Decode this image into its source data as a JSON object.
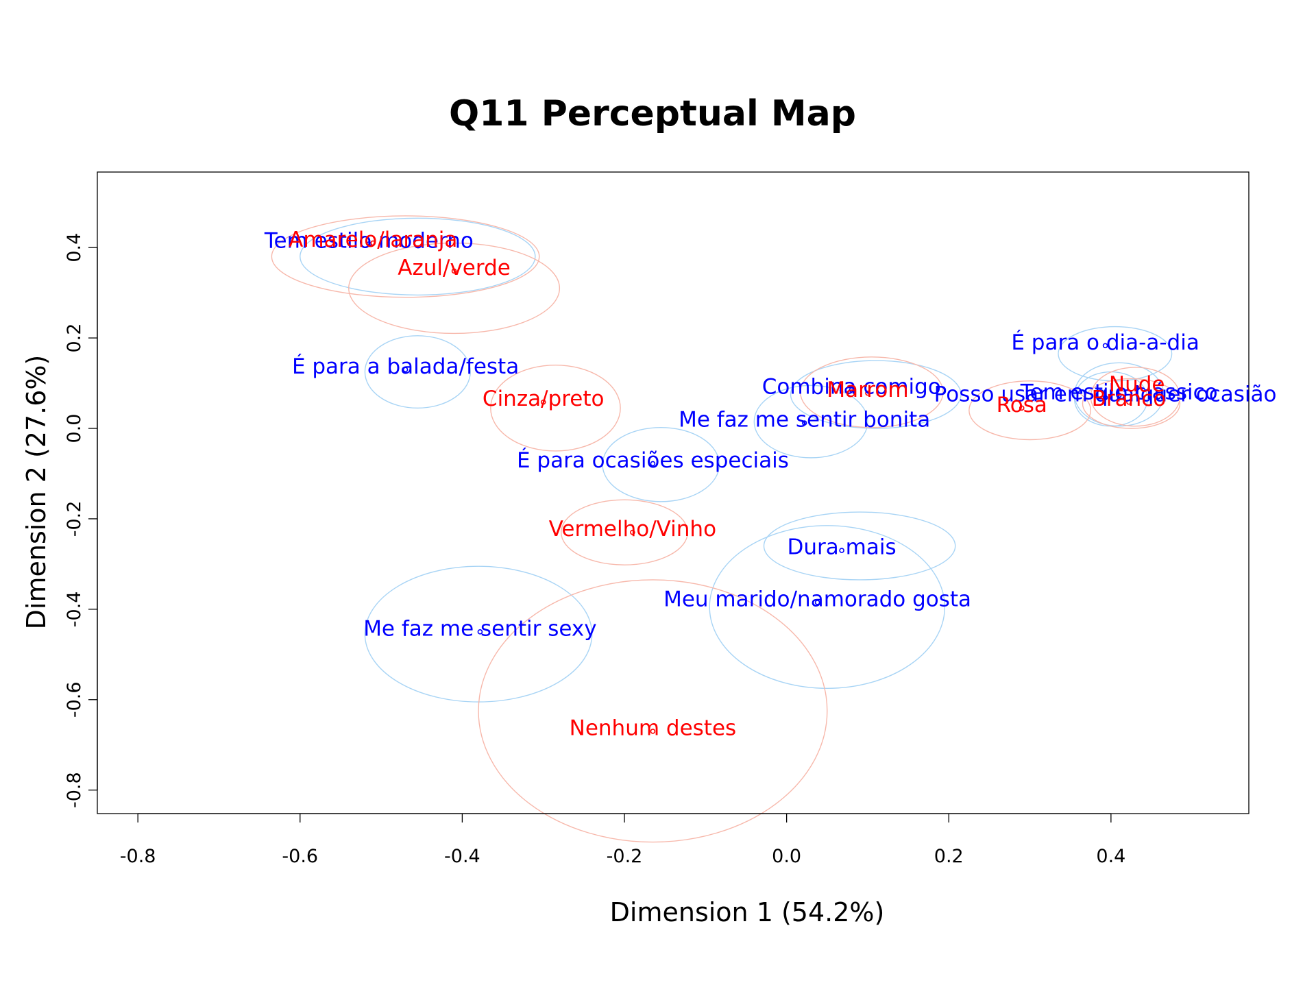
{
  "chart_data": {
    "type": "scatter",
    "title": "Q11 Perceptual Map",
    "xlabel": "Dimension 1 (54.2%)",
    "ylabel": "Dimension 2 (27.6%)",
    "xlim": [
      -0.85,
      0.57
    ],
    "ylim": [
      -0.852,
      0.567
    ],
    "xticks": [
      -0.8,
      -0.6,
      -0.4,
      -0.2,
      0.0,
      0.2,
      0.4
    ],
    "yticks": [
      -0.8,
      -0.6,
      -0.4,
      -0.2,
      0.0,
      0.2,
      0.4
    ],
    "xtick_labels": [
      "-0.8",
      "-0.6",
      "-0.4",
      "-0.2",
      "0.0",
      "0.2",
      "0.4"
    ],
    "ytick_labels": [
      "-0.8",
      "-0.6",
      "-0.4",
      "-0.2",
      "0.0",
      "0.2",
      "0.4"
    ],
    "grid": false,
    "colors": {
      "rows": "#0000ff",
      "cols": "#ff0000",
      "rows_ellipse": "#a8d4f5",
      "cols_ellipse": "#f7b8ab"
    },
    "series": [
      {
        "group": "rows",
        "points": [
          {
            "label": "Tem estilo moderno",
            "x": -0.515,
            "y": 0.408,
            "ellipse": {
              "cx": -0.455,
              "cy": 0.38,
              "rx": 0.145,
              "ry": 0.085
            }
          },
          {
            "label": "É para a balada/festa",
            "x": -0.47,
            "y": 0.13,
            "ellipse": {
              "cx": -0.455,
              "cy": 0.125,
              "rx": 0.065,
              "ry": 0.08
            }
          },
          {
            "label": "É para o dia-a-dia",
            "x": 0.393,
            "y": 0.183,
            "ellipse": {
              "cx": 0.405,
              "cy": 0.165,
              "rx": 0.07,
              "ry": 0.06
            }
          },
          {
            "label": "Combina comigo",
            "x": 0.08,
            "y": 0.085,
            "ellipse": {
              "cx": 0.11,
              "cy": 0.075,
              "rx": 0.105,
              "ry": 0.075
            }
          },
          {
            "label": "Tem estilo clássico",
            "x": 0.41,
            "y": 0.073,
            "ellipse": {
              "cx": 0.41,
              "cy": 0.075,
              "rx": 0.055,
              "ry": 0.07
            }
          },
          {
            "label": "Me faz me sentir bonita",
            "x": 0.022,
            "y": 0.012,
            "ellipse": {
              "cx": 0.03,
              "cy": 0.015,
              "rx": 0.07,
              "ry": 0.08
            }
          },
          {
            "label": "Posso usar em qualquer ocasião",
            "x": 0.393,
            "y": 0.068,
            "ellipse": {
              "cx": 0.4,
              "cy": 0.065,
              "rx": 0.045,
              "ry": 0.06
            }
          },
          {
            "label": "É para ocasiões especiais",
            "x": -0.165,
            "y": -0.078,
            "ellipse": {
              "cx": -0.155,
              "cy": -0.08,
              "rx": 0.072,
              "ry": 0.082
            }
          },
          {
            "label": "Dura mais",
            "x": 0.068,
            "y": -0.27,
            "ellipse": {
              "cx": 0.09,
              "cy": -0.26,
              "rx": 0.118,
              "ry": 0.075
            }
          },
          {
            "label": "Meu marido/namorado gosta",
            "x": 0.038,
            "y": -0.385,
            "ellipse": {
              "cx": 0.05,
              "cy": -0.395,
              "rx": 0.145,
              "ry": 0.18
            }
          },
          {
            "label": "Me faz me sentir sexy",
            "x": -0.378,
            "y": -0.45,
            "ellipse": {
              "cx": -0.38,
              "cy": -0.455,
              "rx": 0.14,
              "ry": 0.15
            }
          }
        ]
      },
      {
        "group": "cols",
        "points": [
          {
            "label": "Amarelo/laranja",
            "x": -0.51,
            "y": 0.41,
            "ellipse": {
              "cx": -0.47,
              "cy": 0.38,
              "rx": 0.165,
              "ry": 0.09
            }
          },
          {
            "label": "Azul/verde",
            "x": -0.41,
            "y": 0.348,
            "ellipse": {
              "cx": -0.41,
              "cy": 0.31,
              "rx": 0.13,
              "ry": 0.1
            }
          },
          {
            "label": "Cinza/preto",
            "x": -0.3,
            "y": 0.058,
            "ellipse": {
              "cx": -0.285,
              "cy": 0.045,
              "rx": 0.08,
              "ry": 0.095
            }
          },
          {
            "label": "Marrom",
            "x": 0.1,
            "y": 0.078,
            "ellipse": {
              "cx": 0.105,
              "cy": 0.08,
              "rx": 0.088,
              "ry": 0.078
            }
          },
          {
            "label": "Rosa",
            "x": 0.29,
            "y": 0.045,
            "ellipse": {
              "cx": 0.3,
              "cy": 0.04,
              "rx": 0.075,
              "ry": 0.065
            }
          },
          {
            "label": "Nude",
            "x": 0.432,
            "y": 0.09,
            "ellipse": {
              "cx": 0.43,
              "cy": 0.07,
              "rx": 0.055,
              "ry": 0.065
            }
          },
          {
            "label": "Branco",
            "x": 0.422,
            "y": 0.058,
            "ellipse": {
              "cx": 0.425,
              "cy": 0.055,
              "rx": 0.06,
              "ry": 0.055
            }
          },
          {
            "label": "Vermelho/Vinho",
            "x": -0.19,
            "y": -0.23,
            "ellipse": {
              "cx": -0.2,
              "cy": -0.23,
              "rx": 0.078,
              "ry": 0.072
            }
          },
          {
            "label": "Nenhum destes",
            "x": -0.165,
            "y": -0.67,
            "ellipse": {
              "cx": -0.165,
              "cy": -0.625,
              "rx": 0.215,
              "ry": 0.29
            }
          }
        ]
      }
    ]
  }
}
